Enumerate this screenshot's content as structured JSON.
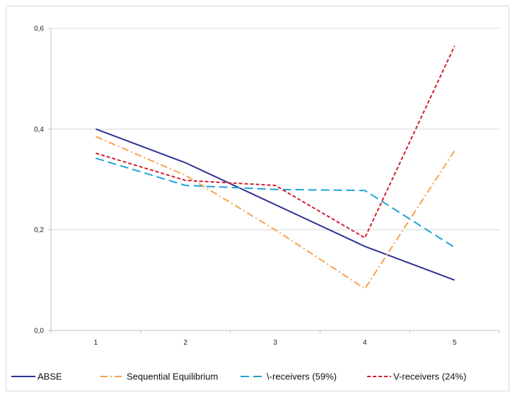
{
  "chart_data": {
    "type": "line",
    "title": "",
    "xlabel": "",
    "ylabel": "",
    "categories": [
      "1",
      "2",
      "3",
      "4",
      "5"
    ],
    "ylim": [
      0,
      0.6
    ],
    "y_ticks": [
      "0,0",
      "0,2",
      "0,4",
      "0,6"
    ],
    "grid": "horizontal",
    "legend": "bottom",
    "series": [
      {
        "name": "ABSE",
        "values": [
          0.4,
          0.333,
          0.25,
          0.167,
          0.1
        ],
        "color": "#2e3192",
        "dash": "solid"
      },
      {
        "name": "Sequential Equilibrium",
        "values": [
          0.385,
          0.308,
          0.2,
          0.083,
          0.357
        ],
        "color": "#f7a34c",
        "dash": "dash-dot"
      },
      {
        "name": "\\-receivers (59%)",
        "values": [
          0.342,
          0.288,
          0.28,
          0.278,
          0.165
        ],
        "color": "#1fa3d8",
        "dash": "long-dash"
      },
      {
        "name": "V-receivers (24%)",
        "values": [
          0.352,
          0.298,
          0.288,
          0.184,
          0.565
        ],
        "color": "#d02030",
        "dash": "short-dash"
      }
    ]
  }
}
